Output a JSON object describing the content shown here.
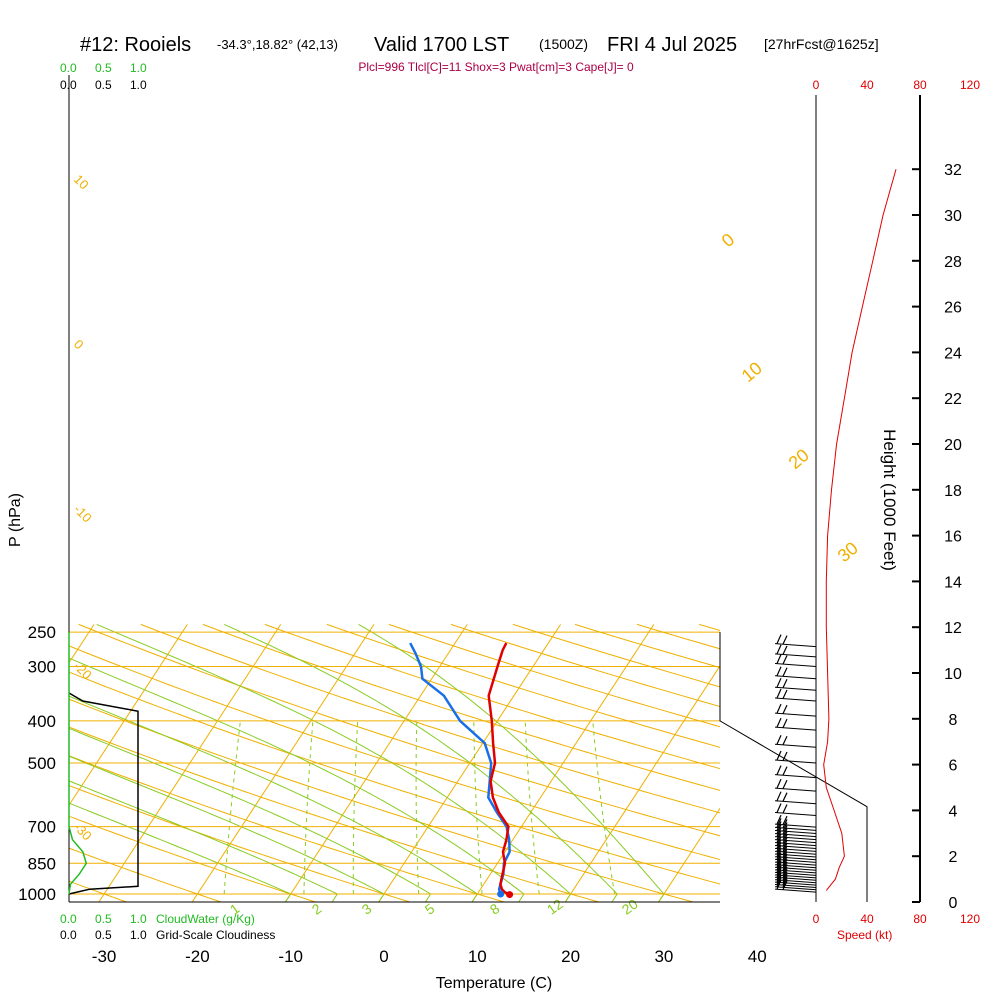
{
  "header": {
    "station": "#12: Rooiels",
    "coords": "-34.3°,18.82° (42,13)",
    "valid": "Valid 1700 LST",
    "utc": "(1500Z)",
    "date": "FRI 4 Jul 2025",
    "forecast": "[27hrFcst@1625z]",
    "params": "Plcl=996 Tlcl[C]=11 Shox=3 Pwat[cm]=3 Cape[J]= 0"
  },
  "colors": {
    "temperature": "#e00000",
    "dewpoint": "#1a6fe8",
    "isobar": "#f0b000",
    "dry_adiabat": "#f0b000",
    "moist_adiabat": "#88cc22",
    "mixing_ratio": "#88cc22",
    "cloud_water": "#22bb22",
    "speed": "#e00000",
    "title_params": "#aa0044"
  },
  "chart_data": {
    "type": "line",
    "title": "",
    "xlabel": "Temperature (C)",
    "ylabel": "P (hPa)",
    "right_label": "Height (1000 Feet)",
    "x_ticks": [
      "-30",
      "-20",
      "-10",
      "0",
      "10",
      "20",
      "30",
      "40"
    ],
    "p_ticks": [
      "250",
      "300",
      "400",
      "500",
      "700",
      "850",
      "1000"
    ],
    "height_ticks": [
      "0",
      "2",
      "4",
      "6",
      "8",
      "10",
      "12",
      "14",
      "16",
      "18",
      "20",
      "22",
      "24",
      "26",
      "28",
      "30",
      "32"
    ],
    "xlim": [
      -34,
      36
    ],
    "ylim_hpa": [
      1020,
      250
    ],
    "mixing_ratio_labels": [
      "1",
      "2",
      "3",
      "5",
      "8",
      "12",
      "20"
    ],
    "dry_adiabat_labels": [
      "10",
      "0",
      "-10",
      "-20",
      "-30"
    ],
    "moist_adiabat_labels": [
      "0",
      "10",
      "20",
      "30"
    ],
    "temperature": [
      {
        "p": 1003,
        "t": 13.5
      },
      {
        "p": 990,
        "t": 12.8
      },
      {
        "p": 975,
        "t": 12.3
      },
      {
        "p": 950,
        "t": 11.8
      },
      {
        "p": 900,
        "t": 11.3
      },
      {
        "p": 850,
        "t": 10.8
      },
      {
        "p": 800,
        "t": 9.8
      },
      {
        "p": 750,
        "t": 9.3
      },
      {
        "p": 700,
        "t": 8.6
      },
      {
        "p": 650,
        "t": 6.6
      },
      {
        "p": 600,
        "t": 4.9
      },
      {
        "p": 550,
        "t": 3.5
      },
      {
        "p": 500,
        "t": 2.7
      },
      {
        "p": 450,
        "t": 1.1
      },
      {
        "p": 400,
        "t": -0.6
      },
      {
        "p": 350,
        "t": -2.7
      },
      {
        "p": 300,
        "t": -3.8
      },
      {
        "p": 275,
        "t": -4.4
      },
      {
        "p": 265,
        "t": -4.5
      }
    ],
    "dewpoint": [
      {
        "p": 1000,
        "t": 12.5
      },
      {
        "p": 975,
        "t": 12.0
      },
      {
        "p": 950,
        "t": 11.8
      },
      {
        "p": 900,
        "t": 11.4
      },
      {
        "p": 850,
        "t": 10.7
      },
      {
        "p": 800,
        "t": 10.5
      },
      {
        "p": 750,
        "t": 9.6
      },
      {
        "p": 700,
        "t": 8.4
      },
      {
        "p": 650,
        "t": 6.4
      },
      {
        "p": 600,
        "t": 4.4
      },
      {
        "p": 550,
        "t": 3.4
      },
      {
        "p": 500,
        "t": 2.3
      },
      {
        "p": 450,
        "t": 0.2
      },
      {
        "p": 400,
        "t": -4.0
      },
      {
        "p": 350,
        "t": -7.5
      },
      {
        "p": 320,
        "t": -11.0
      },
      {
        "p": 300,
        "t": -12.0
      },
      {
        "p": 280,
        "t": -13.5
      },
      {
        "p": 265,
        "t": -14.8
      }
    ],
    "wind_speed_kt": [
      {
        "h": 0.5,
        "s": 8
      },
      {
        "h": 1,
        "s": 15
      },
      {
        "h": 1.5,
        "s": 18
      },
      {
        "h": 2,
        "s": 22
      },
      {
        "h": 3,
        "s": 20
      },
      {
        "h": 4,
        "s": 14
      },
      {
        "h": 5,
        "s": 8
      },
      {
        "h": 6,
        "s": 6
      },
      {
        "h": 7,
        "s": 9
      },
      {
        "h": 8,
        "s": 10
      },
      {
        "h": 10,
        "s": 9
      },
      {
        "h": 12,
        "s": 8
      },
      {
        "h": 14,
        "s": 8
      },
      {
        "h": 16,
        "s": 9
      },
      {
        "h": 18,
        "s": 12
      },
      {
        "h": 20,
        "s": 16
      },
      {
        "h": 22,
        "s": 22
      },
      {
        "h": 24,
        "s": 28
      },
      {
        "h": 26,
        "s": 36
      },
      {
        "h": 28,
        "s": 44
      },
      {
        "h": 30,
        "s": 52
      },
      {
        "h": 32,
        "s": 62
      }
    ],
    "cloud_water_gkg": [
      {
        "p": 1000,
        "t": 0.0
      },
      {
        "p": 950,
        "t": 0.02
      },
      {
        "p": 900,
        "t": 0.15
      },
      {
        "p": 850,
        "t": 0.25
      },
      {
        "p": 800,
        "t": 0.2
      },
      {
        "p": 750,
        "t": 0.05
      },
      {
        "p": 700,
        "t": 0.0
      },
      {
        "p": 250,
        "t": 0.0
      }
    ],
    "cloudiness": [
      {
        "p": 1000,
        "v": 0.0
      },
      {
        "p": 975,
        "v": 0.3
      },
      {
        "p": 960,
        "v": 1.0
      },
      {
        "p": 380,
        "v": 1.0
      },
      {
        "p": 360,
        "v": 0.2
      },
      {
        "p": 345,
        "v": 0.0
      }
    ]
  },
  "axes": {
    "cloudwater_scale": [
      "0.0",
      "0.5",
      "1.0"
    ],
    "cloudiness_scale": [
      "0.0",
      "0.5",
      "1.0"
    ],
    "speed_scale": [
      "0",
      "40",
      "80",
      "120"
    ],
    "cloudwater_label": "CloudWater (g/Kg)",
    "cloudiness_label": "Grid-Scale Cloudiness",
    "speed_label": "Speed (kt)"
  }
}
